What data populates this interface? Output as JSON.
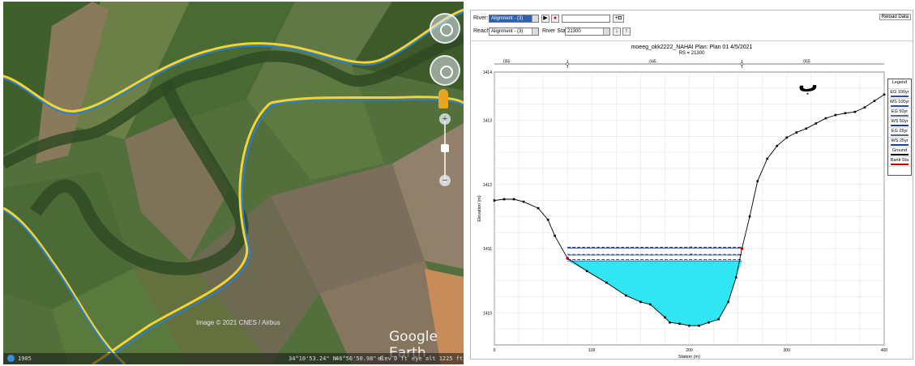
{
  "earth": {
    "credit": "Image © 2021 CNES / Airbus",
    "brand": "Google Earth",
    "status": {
      "tour_label": "1905",
      "lat": "34°10'53.24\" N",
      "lon": "46°56'50.98\" E",
      "elev_label": "elev",
      "elev_value": "0 ft",
      "eye_alt": "eye alt 1225 ft"
    },
    "icons": [
      "navigation-compass-icon",
      "look-around-icon",
      "pegman-icon",
      "zoom-in-icon",
      "zoom-out-icon",
      "tour-icon"
    ]
  },
  "ras": {
    "toolbar": {
      "river_label": "River:",
      "river_value": "Alignment - (3)",
      "reach_label": "Reach:",
      "reach_value": "Alignment - (3)",
      "river_sta_label": "River Sta.:",
      "river_sta_value": "21300",
      "reload_label": "Reload Data"
    },
    "plot": {
      "title": "moeeg_okk2222_NAHAI      Plan: Plan 01    4/5/2021",
      "subtitle": "RS = 21300",
      "corner_label": "ب"
    },
    "legend": {
      "title": "Legend",
      "items": [
        {
          "label": "EG 100yr",
          "color": "#2a4fa0"
        },
        {
          "label": "WS 100yr",
          "color": "#2a4fa0"
        },
        {
          "label": "EG 50yr",
          "color": "#556b8a"
        },
        {
          "label": "WS 50yr",
          "color": "#1a3f9a"
        },
        {
          "label": "EG 25yr",
          "color": "#556b8a"
        },
        {
          "label": "WS 25yr",
          "color": "#1a3f9a"
        },
        {
          "label": "Ground",
          "color": "#000000"
        },
        {
          "label": "Bank Sta",
          "color": "#c00000"
        }
      ]
    }
  },
  "chart_data": {
    "type": "line",
    "title": "moeeg_okk2222_NAHAI      Plan: Plan 01    4/5/2021",
    "xlabel": "Station (m)",
    "ylabel": "Elevation (m)",
    "xlim": [
      0,
      400
    ],
    "ylim": [
      1409.75,
      1414.0
    ],
    "x_ticks": [
      100,
      200,
      300,
      400
    ],
    "y_ticks": [
      {
        "value": 1410.25,
        "label": "1410"
      },
      {
        "value": 1411.25,
        "label": "1411"
      },
      {
        "value": 1412.25,
        "label": "1412"
      },
      {
        "value": 1413.25,
        "label": "1413"
      },
      {
        "value": 1414.0,
        "label": "1414"
      }
    ],
    "reach_labels": [
      {
        "x": 12,
        "label": ".055"
      },
      {
        "x": 162,
        "label": ".045"
      },
      {
        "x": 320,
        "label": ".055"
      }
    ],
    "bank_stations": [
      75,
      254
    ],
    "ground": {
      "x": [
        0,
        10,
        20,
        30,
        45,
        55,
        62,
        75,
        95,
        115,
        135,
        150,
        160,
        175,
        180,
        190,
        200,
        210,
        220,
        230,
        240,
        248,
        254,
        262,
        270,
        280,
        290,
        300,
        310,
        320,
        330,
        340,
        350,
        360,
        370,
        380,
        390,
        400
      ],
      "y": [
        1412.0,
        1412.02,
        1412.02,
        1411.98,
        1411.88,
        1411.7,
        1411.45,
        1411.1,
        1410.9,
        1410.72,
        1410.52,
        1410.42,
        1410.38,
        1410.18,
        1410.1,
        1410.08,
        1410.05,
        1410.05,
        1410.1,
        1410.15,
        1410.42,
        1410.8,
        1411.25,
        1411.75,
        1412.3,
        1412.65,
        1412.85,
        1412.98,
        1413.06,
        1413.12,
        1413.2,
        1413.28,
        1413.33,
        1413.36,
        1413.38,
        1413.45,
        1413.55,
        1413.65
      ]
    },
    "water_surfaces": [
      {
        "name": "EG 100yr",
        "y": 1411.27
      },
      {
        "name": "WS 100yr",
        "y": 1411.26
      },
      {
        "name": "EG 50yr",
        "y": 1411.16
      },
      {
        "name": "WS 50yr",
        "y": 1411.15
      },
      {
        "name": "EG 25yr",
        "y": 1411.08
      },
      {
        "name": "WS 25yr",
        "y": 1411.06
      }
    ],
    "grid": true,
    "legend_position": "right"
  }
}
